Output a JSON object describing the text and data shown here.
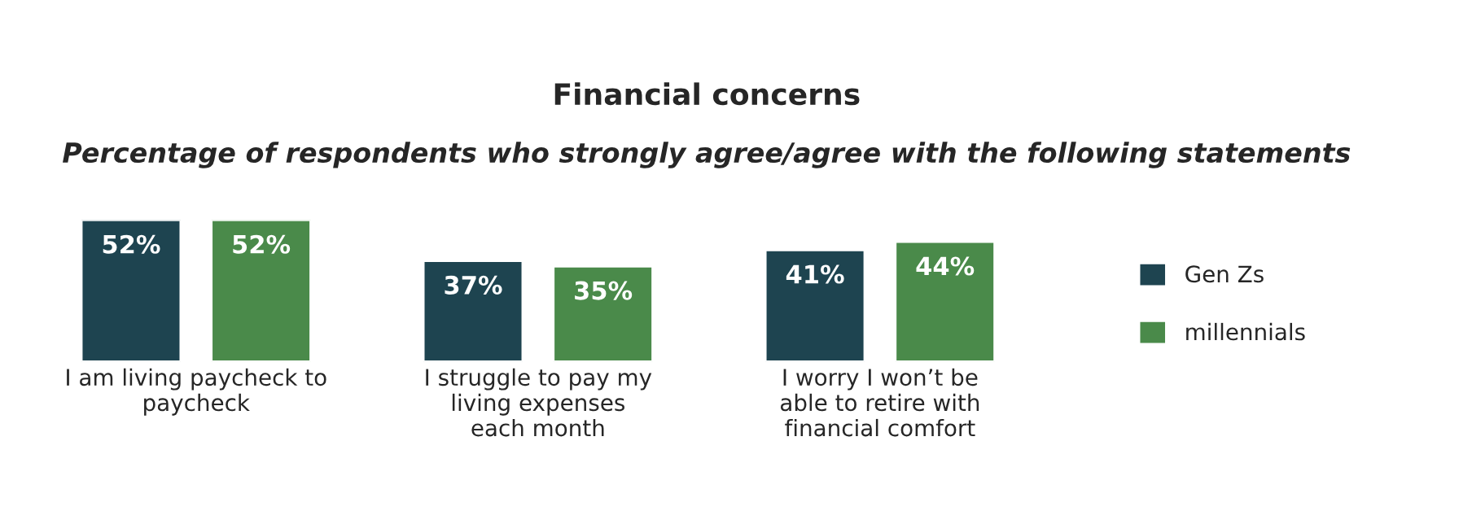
{
  "chart_data": {
    "type": "bar",
    "title": "Financial concerns",
    "subtitle": "Percentage of respondents who strongly agree/agree with the following statements",
    "categories": [
      "I am living paycheck to\npaycheck",
      "I struggle to pay my\nliving expenses\neach month",
      "I worry I won’t be\nable to retire with\nfinancial comfort"
    ],
    "series": [
      {
        "name": "Gen Zs",
        "color": "#1e4450",
        "values": [
          52,
          37,
          41
        ],
        "value_labels": [
          "52%",
          "37%",
          "41%"
        ]
      },
      {
        "name": "millennials",
        "color": "#4a8a4a",
        "values": [
          52,
          35,
          44
        ],
        "value_labels": [
          "52%",
          "35%",
          "44%"
        ]
      }
    ],
    "legend": "right"
  }
}
